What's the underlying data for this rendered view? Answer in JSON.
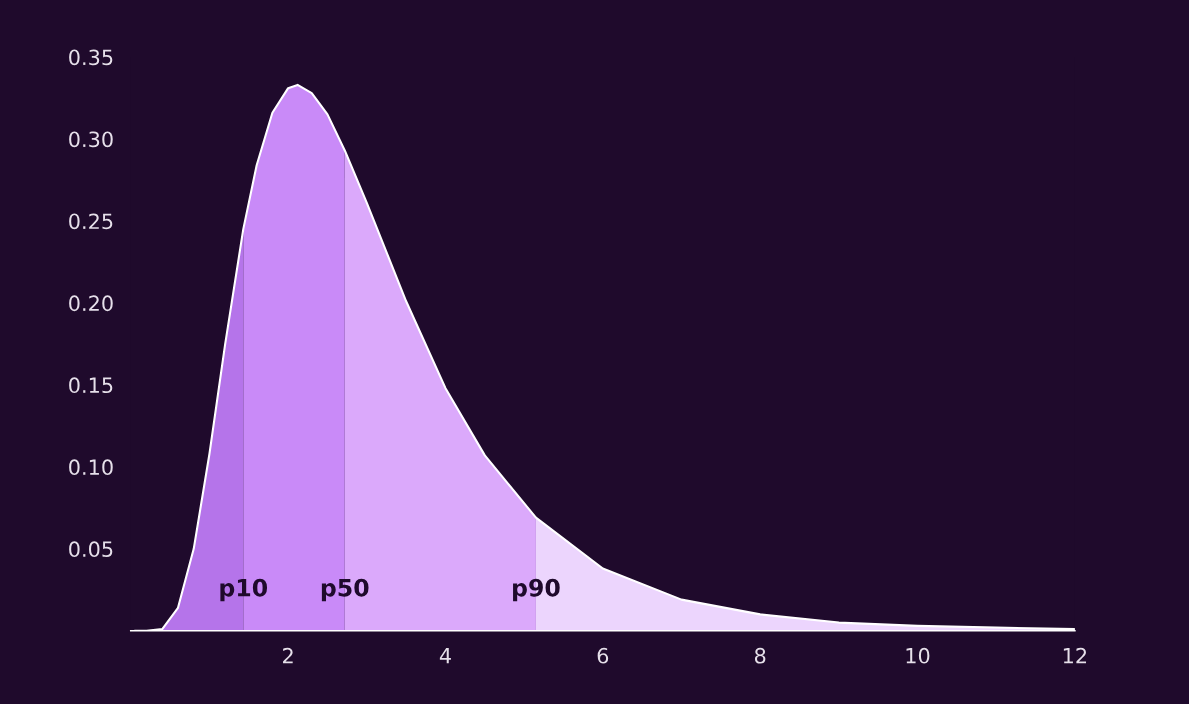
{
  "chart_data": {
    "type": "area",
    "xlim": [
      0,
      12
    ],
    "ylim": [
      0,
      0.35
    ],
    "xticks": [
      2,
      4,
      6,
      8,
      10,
      12
    ],
    "yticks": [
      0.05,
      {
        "value": 0.1,
        "label": "0.10"
      },
      0.15,
      {
        "value": 0.2,
        "label": "0.20"
      },
      0.25,
      {
        "value": 0.3,
        "label": "0.30"
      },
      0.35
    ],
    "series": [
      {
        "color": "#b574ea",
        "x": [
          0.05,
          0.2,
          0.4,
          0.6,
          0.8,
          1.0,
          1.2,
          1.43
        ],
        "values": [
          0.0,
          0.0,
          0.001,
          0.014,
          0.05,
          0.108,
          0.175,
          0.245
        ]
      },
      {
        "color": "#c98af8",
        "x": [
          1.43,
          1.6,
          1.8,
          2.0,
          2.12,
          2.3,
          2.5,
          2.72
        ],
        "values": [
          0.245,
          0.284,
          0.316,
          0.331,
          0.333,
          0.328,
          0.315,
          0.293
        ]
      },
      {
        "color": "#dba9fb",
        "x": [
          2.72,
          3.0,
          3.5,
          4.0,
          4.5,
          5.15
        ],
        "values": [
          0.293,
          0.261,
          0.201,
          0.148,
          0.107,
          0.069
        ]
      },
      {
        "color": "#ecd5fd",
        "x": [
          5.15,
          6,
          7,
          8,
          9,
          10,
          11,
          12
        ],
        "values": [
          0.069,
          0.038,
          0.019,
          0.01,
          0.005,
          0.003,
          0.002,
          0.001
        ]
      },
      {
        "type": "line",
        "color": "#ffffff",
        "x": [
          0.05,
          0.2,
          0.4,
          0.6,
          0.8,
          1.0,
          1.2,
          1.43,
          1.6,
          1.8,
          2.0,
          2.12,
          2.3,
          2.5,
          2.72,
          3.0,
          3.5,
          4.0,
          4.5,
          5.15,
          6,
          7,
          8,
          9,
          10,
          11,
          12
        ],
        "values": [
          0.0,
          0.0,
          0.001,
          0.014,
          0.05,
          0.108,
          0.175,
          0.245,
          0.284,
          0.316,
          0.331,
          0.333,
          0.328,
          0.315,
          0.293,
          0.261,
          0.201,
          0.148,
          0.107,
          0.069,
          0.038,
          0.019,
          0.01,
          0.005,
          0.003,
          0.002,
          0.001
        ]
      }
    ],
    "annotations": [
      {
        "text": "p10",
        "x": 1.43,
        "y": 0.025
      },
      {
        "text": "p50",
        "x": 2.72,
        "y": 0.025
      },
      {
        "text": "p90",
        "x": 5.15,
        "y": 0.025
      }
    ]
  }
}
